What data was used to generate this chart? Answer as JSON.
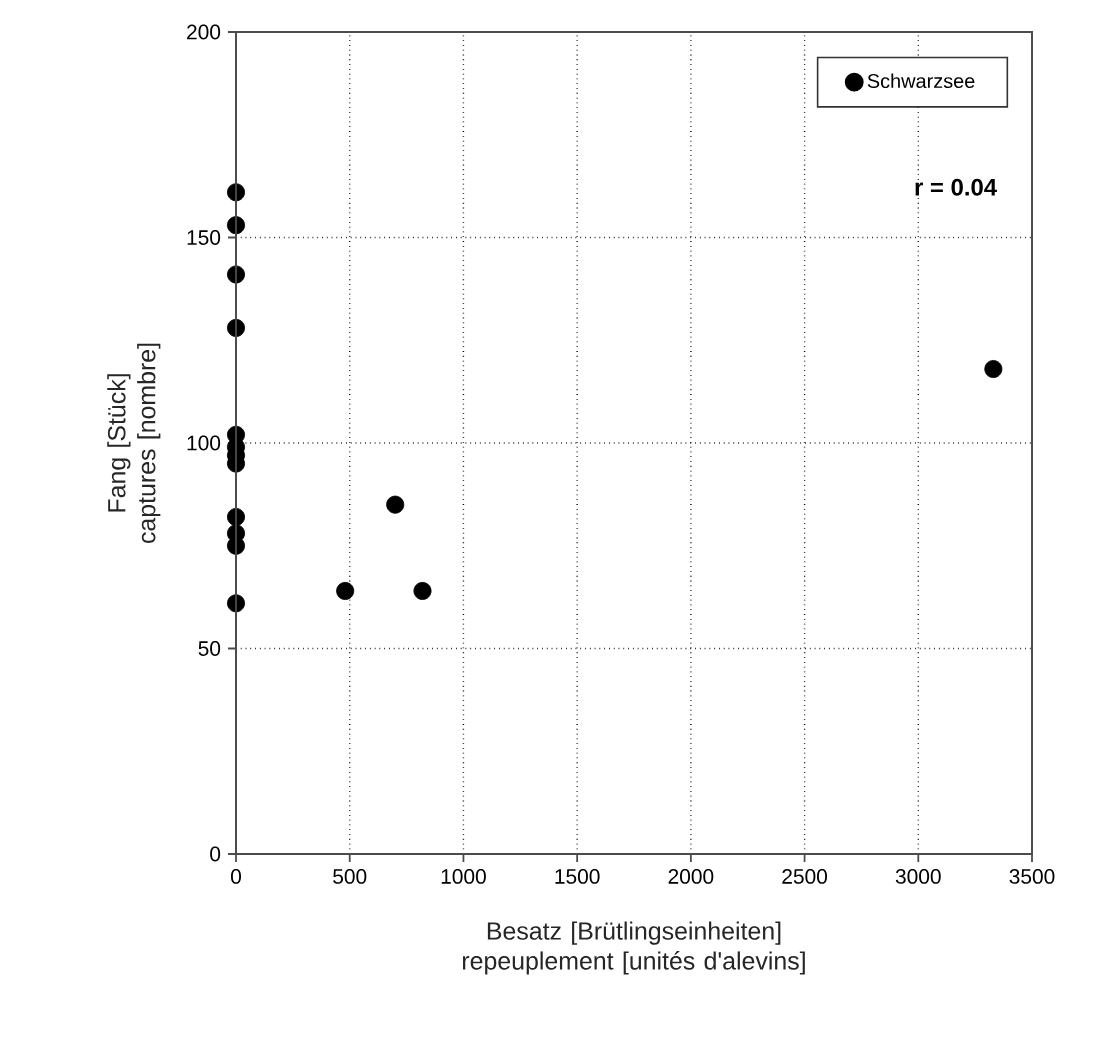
{
  "chart_data": {
    "type": "scatter",
    "xlabel": "Besatz [Brütlingseinheiten] repeuplement [unités d'alevins]",
    "ylabel": "Fang [Stück] captures [nombre]",
    "series": [
      {
        "name": "Schwarzsee",
        "color": "#000000",
        "x": [
          0,
          0,
          0,
          0,
          0,
          0,
          0,
          0,
          0,
          0,
          0,
          0,
          480,
          700,
          820,
          3330
        ],
        "values": [
          161,
          153,
          141,
          128,
          102,
          99,
          97,
          95,
          82,
          78,
          75,
          61,
          64,
          85,
          64,
          118
        ]
      }
    ],
    "annotations": [
      "r = 0.04"
    ],
    "xlim": [
      0,
      3500
    ],
    "xticks": [
      0,
      500,
      1000,
      1500,
      2000,
      2500,
      3000,
      3500
    ],
    "ylim": [
      0,
      200
    ],
    "yticks": [
      0,
      50,
      100,
      150,
      200
    ],
    "grid": true,
    "legend": "top right",
    "marker": "circle"
  }
}
